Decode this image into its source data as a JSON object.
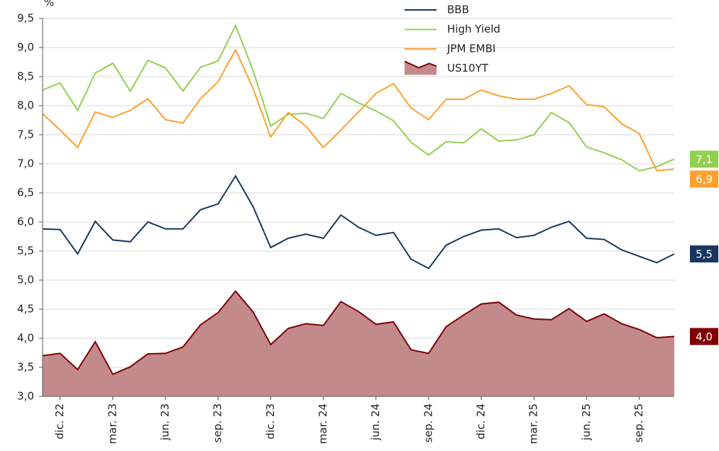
{
  "chart_data": {
    "type": "line",
    "ylabel": "%",
    "categories": [
      null,
      "dic. 22",
      null,
      null,
      "mar. 23",
      null,
      null,
      "jun. 23",
      null,
      null,
      "sep. 23",
      null,
      null,
      "dic. 23",
      null,
      null,
      "mar. 24",
      null,
      null,
      "jun. 24",
      null,
      null,
      "sep. 24",
      null,
      null,
      "dic. 24",
      null,
      null,
      "mar. 25",
      null,
      null,
      "jun. 25",
      null,
      null,
      "sep. 25",
      null,
      null
    ],
    "series": [
      {
        "name": "BBB",
        "color": "#17375e",
        "end_label": "5,5",
        "values": [
          5.88,
          5.87,
          5.45,
          6.01,
          5.69,
          5.66,
          6.0,
          5.88,
          5.88,
          6.21,
          6.31,
          6.79,
          6.26,
          5.56,
          5.72,
          5.79,
          5.72,
          6.12,
          5.91,
          5.77,
          5.82,
          5.36,
          5.2,
          5.6,
          5.75,
          5.86,
          5.88,
          5.73,
          5.77,
          5.91,
          6.01,
          5.72,
          5.7,
          5.52,
          5.41,
          5.3,
          5.45
        ]
      },
      {
        "name": "High Yield",
        "color": "#92d050",
        "end_label": "7,1",
        "values": [
          8.27,
          8.39,
          7.92,
          8.56,
          8.73,
          8.25,
          8.78,
          8.65,
          8.25,
          8.66,
          8.77,
          9.38,
          8.6,
          7.65,
          7.85,
          7.87,
          7.78,
          8.21,
          8.05,
          7.91,
          7.74,
          7.37,
          7.15,
          7.38,
          7.36,
          7.6,
          7.39,
          7.41,
          7.5,
          7.88,
          7.71,
          7.29,
          7.19,
          7.07,
          6.88,
          6.95,
          7.08
        ]
      },
      {
        "name": "JPM EMBI",
        "color": "#ffa02f",
        "end_label": "6,9",
        "values": [
          7.86,
          7.58,
          7.28,
          7.89,
          7.8,
          7.92,
          8.12,
          7.76,
          7.7,
          8.12,
          8.41,
          8.96,
          8.29,
          7.46,
          7.88,
          7.65,
          7.28,
          7.58,
          7.89,
          8.21,
          8.38,
          7.96,
          7.76,
          8.11,
          8.11,
          8.27,
          8.17,
          8.11,
          8.11,
          8.21,
          8.34,
          8.02,
          7.98,
          7.69,
          7.52,
          6.88,
          6.91
        ]
      },
      {
        "name": "US10YT",
        "color": "#7f0000",
        "fill": "#c38a8c",
        "area": true,
        "end_label": "4,0",
        "values": [
          3.7,
          3.74,
          3.46,
          3.94,
          3.38,
          3.51,
          3.73,
          3.74,
          3.85,
          4.23,
          4.44,
          4.81,
          4.45,
          3.89,
          4.17,
          4.25,
          4.22,
          4.63,
          4.46,
          4.24,
          4.28,
          3.8,
          3.74,
          4.2,
          4.4,
          4.59,
          4.62,
          4.4,
          4.33,
          4.32,
          4.51,
          4.29,
          4.42,
          4.25,
          4.15,
          4.01,
          4.03
        ]
      }
    ],
    "ylim": [
      3.0,
      9.5
    ],
    "yticks": [
      {
        "value": 3.0,
        "label": "3,0"
      },
      {
        "value": 3.5,
        "label": "3,5"
      },
      {
        "value": 4.0,
        "label": "4,0"
      },
      {
        "value": 4.5,
        "label": "4,5"
      },
      {
        "value": 5.0,
        "label": "5,0"
      },
      {
        "value": 5.5,
        "label": "5,5"
      },
      {
        "value": 6.0,
        "label": "6,0"
      },
      {
        "value": 6.5,
        "label": "6,5"
      },
      {
        "value": 7.0,
        "label": "7,0"
      },
      {
        "value": 7.5,
        "label": "7,5"
      },
      {
        "value": 8.0,
        "label": "8,0"
      },
      {
        "value": 8.5,
        "label": "8,5"
      },
      {
        "value": 9.0,
        "label": "9,0"
      },
      {
        "value": 9.5,
        "label": "9,5"
      }
    ],
    "grid": true,
    "legend": "top"
  }
}
